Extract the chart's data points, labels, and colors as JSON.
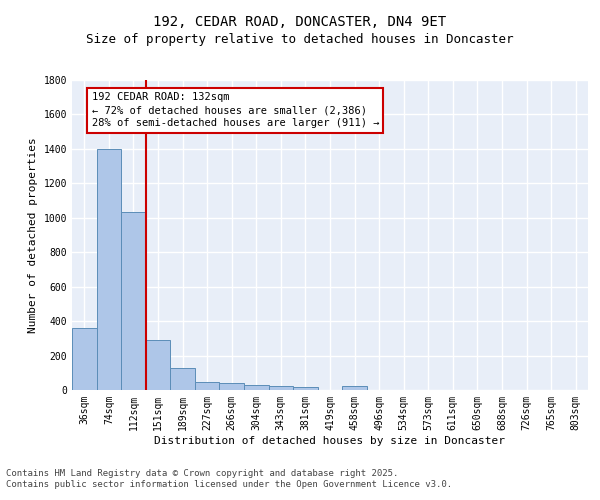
{
  "title_line1": "192, CEDAR ROAD, DONCASTER, DN4 9ET",
  "title_line2": "Size of property relative to detached houses in Doncaster",
  "xlabel": "Distribution of detached houses by size in Doncaster",
  "ylabel": "Number of detached properties",
  "categories": [
    "36sqm",
    "74sqm",
    "112sqm",
    "151sqm",
    "189sqm",
    "227sqm",
    "266sqm",
    "304sqm",
    "343sqm",
    "381sqm",
    "419sqm",
    "458sqm",
    "496sqm",
    "534sqm",
    "573sqm",
    "611sqm",
    "650sqm",
    "688sqm",
    "726sqm",
    "765sqm",
    "803sqm"
  ],
  "values": [
    360,
    1400,
    1035,
    290,
    130,
    45,
    38,
    30,
    22,
    18,
    0,
    22,
    0,
    0,
    0,
    0,
    0,
    0,
    0,
    0,
    0
  ],
  "bar_color": "#aec6e8",
  "bar_edge_color": "#5b8db8",
  "vline_x": 2.5,
  "vline_color": "#cc0000",
  "annotation_text": "192 CEDAR ROAD: 132sqm\n← 72% of detached houses are smaller (2,386)\n28% of semi-detached houses are larger (911) →",
  "annotation_box_color": "#cc0000",
  "ylim": [
    0,
    1800
  ],
  "yticks": [
    0,
    200,
    400,
    600,
    800,
    1000,
    1200,
    1400,
    1600,
    1800
  ],
  "background_color": "#e8eef8",
  "grid_color": "#ffffff",
  "footer_line1": "Contains HM Land Registry data © Crown copyright and database right 2025.",
  "footer_line2": "Contains public sector information licensed under the Open Government Licence v3.0.",
  "title_fontsize": 10,
  "subtitle_fontsize": 9,
  "axis_label_fontsize": 8,
  "tick_fontsize": 7,
  "annotation_fontsize": 7.5,
  "footer_fontsize": 6.5
}
